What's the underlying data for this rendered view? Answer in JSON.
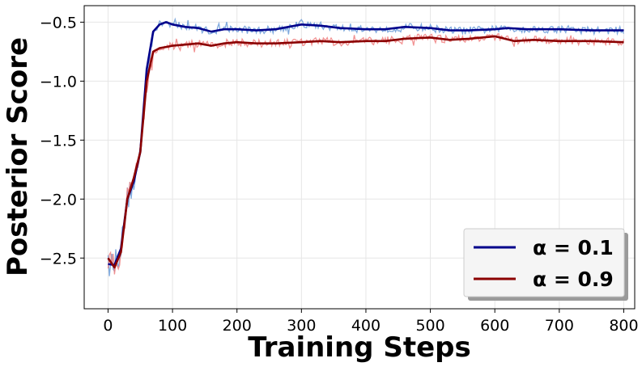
{
  "chart_data": {
    "type": "line",
    "title": "",
    "xlabel": "Training Steps",
    "ylabel": "Posterior Score",
    "xlim": [
      -37,
      817
    ],
    "ylim": [
      -2.93,
      -0.36
    ],
    "x_ticks": [
      0,
      100,
      200,
      300,
      400,
      500,
      600,
      700,
      800
    ],
    "y_ticks": [
      -2.5,
      -2.0,
      -1.5,
      -1.0,
      -0.5
    ],
    "x_tick_labels": [
      "0",
      "100",
      "200",
      "300",
      "400",
      "500",
      "600",
      "700",
      "800"
    ],
    "y_tick_labels": [
      "−2.5",
      "−2.0",
      "−1.5",
      "−1.0",
      "−0.5"
    ],
    "grid": true,
    "legend_position": "lower-right",
    "series": [
      {
        "name": "α = 0.1",
        "color": "#00008b",
        "raw_color": "#6a9bd8",
        "smoothed": [
          [
            0,
            -2.55
          ],
          [
            10,
            -2.56
          ],
          [
            20,
            -2.42
          ],
          [
            30,
            -2.0
          ],
          [
            40,
            -1.85
          ],
          [
            50,
            -1.6
          ],
          [
            60,
            -0.9
          ],
          [
            70,
            -0.58
          ],
          [
            80,
            -0.52
          ],
          [
            90,
            -0.5
          ],
          [
            100,
            -0.52
          ],
          [
            120,
            -0.54
          ],
          [
            140,
            -0.55
          ],
          [
            160,
            -0.58
          ],
          [
            180,
            -0.56
          ],
          [
            200,
            -0.56
          ],
          [
            230,
            -0.57
          ],
          [
            260,
            -0.56
          ],
          [
            300,
            -0.52
          ],
          [
            330,
            -0.53
          ],
          [
            360,
            -0.55
          ],
          [
            400,
            -0.56
          ],
          [
            430,
            -0.56
          ],
          [
            460,
            -0.54
          ],
          [
            500,
            -0.55
          ],
          [
            530,
            -0.57
          ],
          [
            560,
            -0.57
          ],
          [
            600,
            -0.56
          ],
          [
            620,
            -0.55
          ],
          [
            650,
            -0.56
          ],
          [
            700,
            -0.56
          ],
          [
            750,
            -0.57
          ],
          [
            800,
            -0.57
          ]
        ]
      },
      {
        "name": "α = 0.9",
        "color": "#8b0000",
        "raw_color": "#f08080",
        "smoothed": [
          [
            0,
            -2.5
          ],
          [
            10,
            -2.58
          ],
          [
            20,
            -2.45
          ],
          [
            30,
            -2.0
          ],
          [
            40,
            -1.82
          ],
          [
            50,
            -1.6
          ],
          [
            60,
            -1.0
          ],
          [
            70,
            -0.75
          ],
          [
            80,
            -0.72
          ],
          [
            90,
            -0.71
          ],
          [
            100,
            -0.7
          ],
          [
            120,
            -0.69
          ],
          [
            140,
            -0.68
          ],
          [
            160,
            -0.7
          ],
          [
            180,
            -0.68
          ],
          [
            200,
            -0.67
          ],
          [
            230,
            -0.68
          ],
          [
            260,
            -0.68
          ],
          [
            300,
            -0.67
          ],
          [
            330,
            -0.66
          ],
          [
            360,
            -0.67
          ],
          [
            400,
            -0.66
          ],
          [
            430,
            -0.66
          ],
          [
            460,
            -0.64
          ],
          [
            500,
            -0.63
          ],
          [
            530,
            -0.65
          ],
          [
            560,
            -0.64
          ],
          [
            600,
            -0.62
          ],
          [
            630,
            -0.66
          ],
          [
            660,
            -0.65
          ],
          [
            700,
            -0.66
          ],
          [
            750,
            -0.66
          ],
          [
            800,
            -0.67
          ]
        ]
      }
    ]
  }
}
